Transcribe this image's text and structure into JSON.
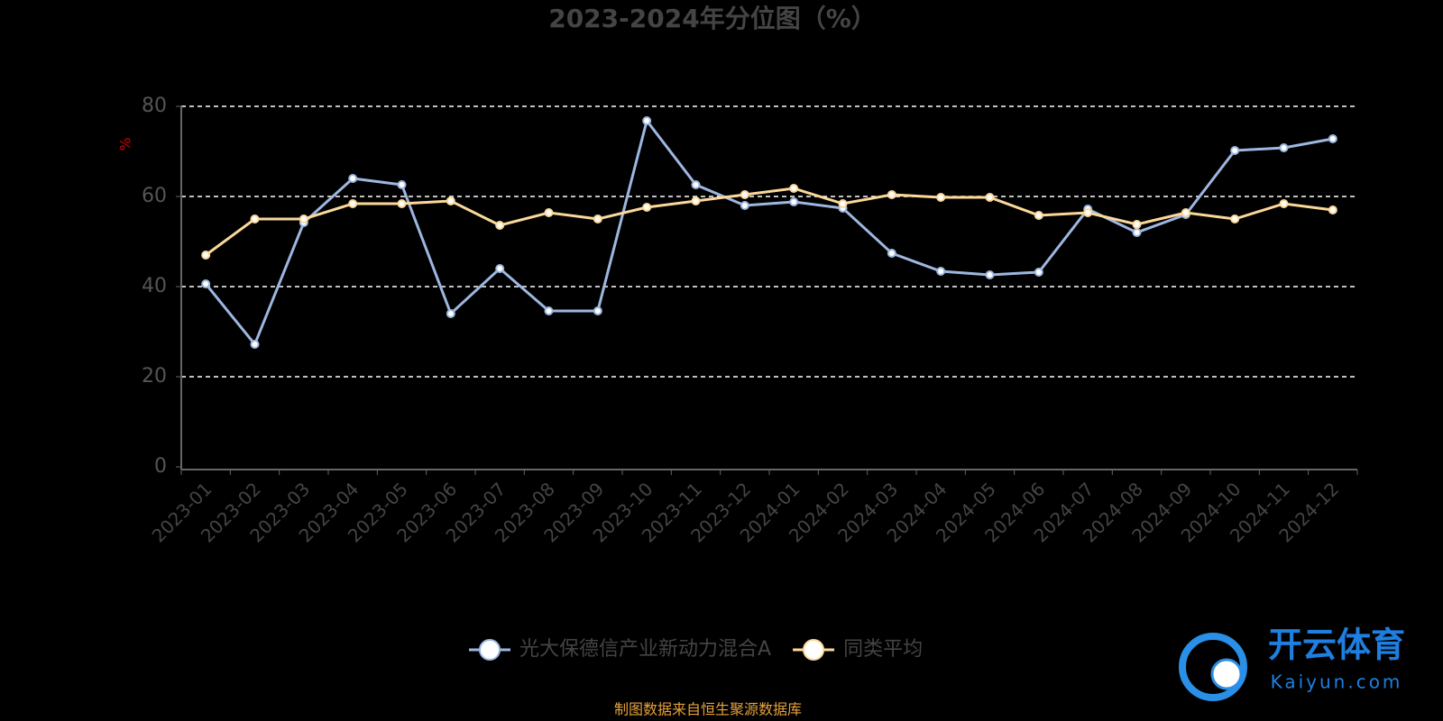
{
  "chart_data": {
    "type": "line",
    "title": "2023-2024年分位图（%）",
    "y_label": "%",
    "categories": [
      "2023-01",
      "2023-02",
      "2023-03",
      "2023-04",
      "2023-05",
      "2023-06",
      "2023-07",
      "2023-08",
      "2023-09",
      "2023-10",
      "2023-11",
      "2023-12",
      "2024-01",
      "2024-02",
      "2024-03",
      "2024-04",
      "2024-05",
      "2024-06",
      "2024-07",
      "2024-08",
      "2024-09",
      "2024-10",
      "2024-11",
      "2024-12"
    ],
    "series": [
      {
        "name": "光大保德信产业新动力混合A",
        "color": "#9db7e0",
        "values": [
          40.6,
          27.2,
          54.2,
          64,
          62.6,
          34,
          44,
          34.6,
          34.6,
          76.8,
          62.6,
          58,
          58.8,
          57.4,
          47.4,
          43.4,
          42.6,
          43.2,
          57.2,
          52,
          56,
          70.2,
          70.8,
          72.8
        ]
      },
      {
        "name": "同类平均",
        "color": "#fbd89a",
        "values": [
          47,
          55,
          55,
          58.4,
          58.4,
          59,
          53.6,
          56.4,
          55,
          57.6,
          59,
          60.4,
          61.8,
          58.4,
          60.4,
          59.8,
          59.8,
          55.8,
          56.4,
          53.8,
          56.4,
          55,
          58.4,
          57
        ]
      }
    ],
    "ylim": [
      0,
      80
    ],
    "yticks": [
      0,
      20,
      40,
      60,
      80
    ],
    "grid": true,
    "source": "制图数据来自恒生聚源数据库"
  },
  "watermark": {
    "name": "开云体育",
    "site": "Kaiyun.com"
  }
}
